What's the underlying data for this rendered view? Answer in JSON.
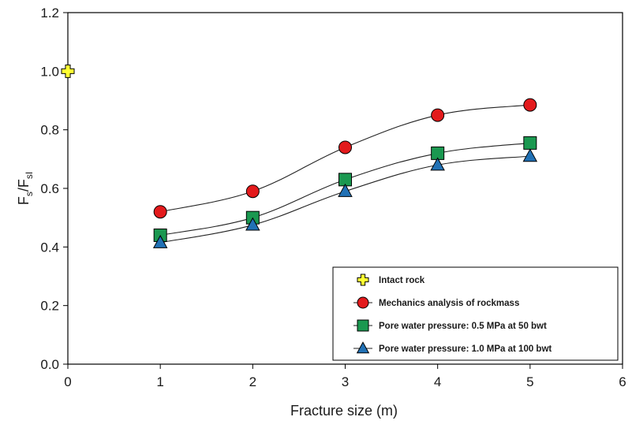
{
  "chart_data": {
    "type": "scatter",
    "xlabel": "Fracture size (m)",
    "ylabel": {
      "main": "F",
      "sub1": "s",
      "slash": "/F",
      "sub2": "sI"
    },
    "xlim": [
      0,
      6
    ],
    "ylim": [
      0,
      1.2
    ],
    "x_ticks": [
      "0",
      "1",
      "2",
      "3",
      "4",
      "5",
      "6"
    ],
    "y_ticks": [
      "0.0",
      "0.2",
      "0.4",
      "0.6",
      "0.8",
      "1.0",
      "1.2"
    ],
    "grid": false,
    "legend_position": "bottom-right",
    "series": [
      {
        "name": "Intact rock",
        "marker": "cross",
        "color": "#ffff33",
        "line": false,
        "x": [
          0
        ],
        "y": [
          1.0
        ]
      },
      {
        "name": "Mechanics analysis of rockmass",
        "marker": "circle",
        "color": "#e31a1c",
        "line": true,
        "x": [
          1,
          2,
          3,
          4,
          5
        ],
        "y": [
          0.52,
          0.59,
          0.74,
          0.85,
          0.885
        ]
      },
      {
        "name": "Pore water pressure: 0.5 MPa at 50 bwt",
        "marker": "square",
        "color": "#1a9850",
        "line": true,
        "x": [
          1,
          2,
          3,
          4,
          5
        ],
        "y": [
          0.44,
          0.5,
          0.63,
          0.72,
          0.755
        ]
      },
      {
        "name": "Pore water pressure: 1.0 MPa at 100 bwt",
        "marker": "triangle",
        "color": "#2171b5",
        "line": true,
        "x": [
          1,
          2,
          3,
          4,
          5
        ],
        "y": [
          0.415,
          0.475,
          0.59,
          0.68,
          0.71
        ]
      }
    ]
  }
}
